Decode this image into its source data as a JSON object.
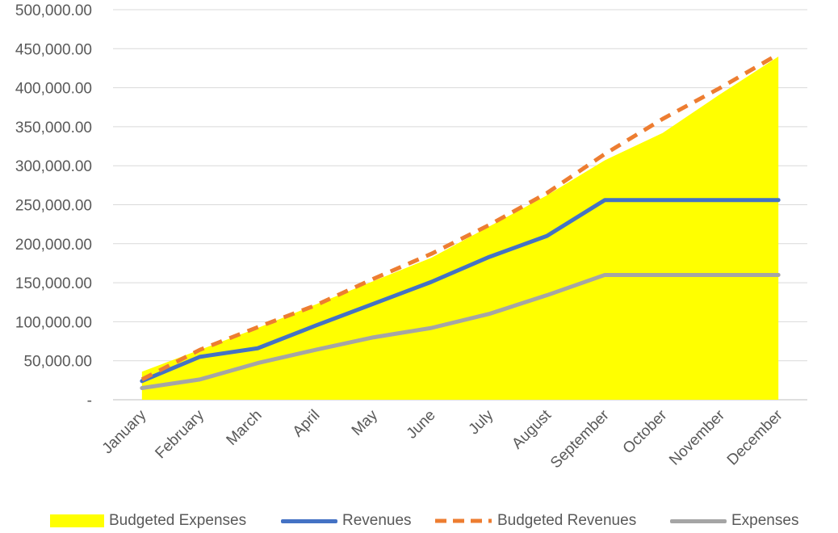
{
  "chart_data": {
    "type": "line",
    "categories": [
      "January",
      "February",
      "March",
      "April",
      "May",
      "June",
      "July",
      "August",
      "September",
      "October",
      "November",
      "December"
    ],
    "ylim": [
      0,
      500000
    ],
    "yticks": [
      0,
      50000,
      100000,
      150000,
      200000,
      250000,
      300000,
      350000,
      400000,
      450000,
      500000
    ],
    "ytick_labels": [
      "-",
      "50,000.00",
      "100,000.00",
      "150,000.00",
      "200,000.00",
      "250,000.00",
      "300,000.00",
      "350,000.00",
      "400,000.00",
      "450,000.00",
      "500,000.00"
    ],
    "grid": true,
    "legend_position": "bottom",
    "series": [
      {
        "name": "Budgeted Expenses",
        "kind": "area",
        "color": "#FFFF00",
        "values": [
          36000,
          64000,
          92000,
          122000,
          152000,
          182000,
          222000,
          262000,
          307000,
          342000,
          392000,
          440000
        ]
      },
      {
        "name": "Revenues",
        "kind": "line",
        "color": "#4472C4",
        "values": [
          24000,
          55000,
          66000,
          95000,
          123000,
          151000,
          183000,
          210000,
          256000,
          256000,
          256000,
          256000
        ]
      },
      {
        "name": "Budgeted Revenues",
        "kind": "dashed-line",
        "color": "#ED7D31",
        "values": [
          26000,
          64000,
          93000,
          121000,
          155000,
          187000,
          224000,
          265000,
          315000,
          360000,
          400000,
          443000
        ]
      },
      {
        "name": "Expenses",
        "kind": "line",
        "color": "#A5A5A5",
        "values": [
          15000,
          26000,
          47000,
          64000,
          80000,
          92000,
          110000,
          134000,
          160000,
          160000,
          160000,
          160000
        ]
      }
    ]
  }
}
